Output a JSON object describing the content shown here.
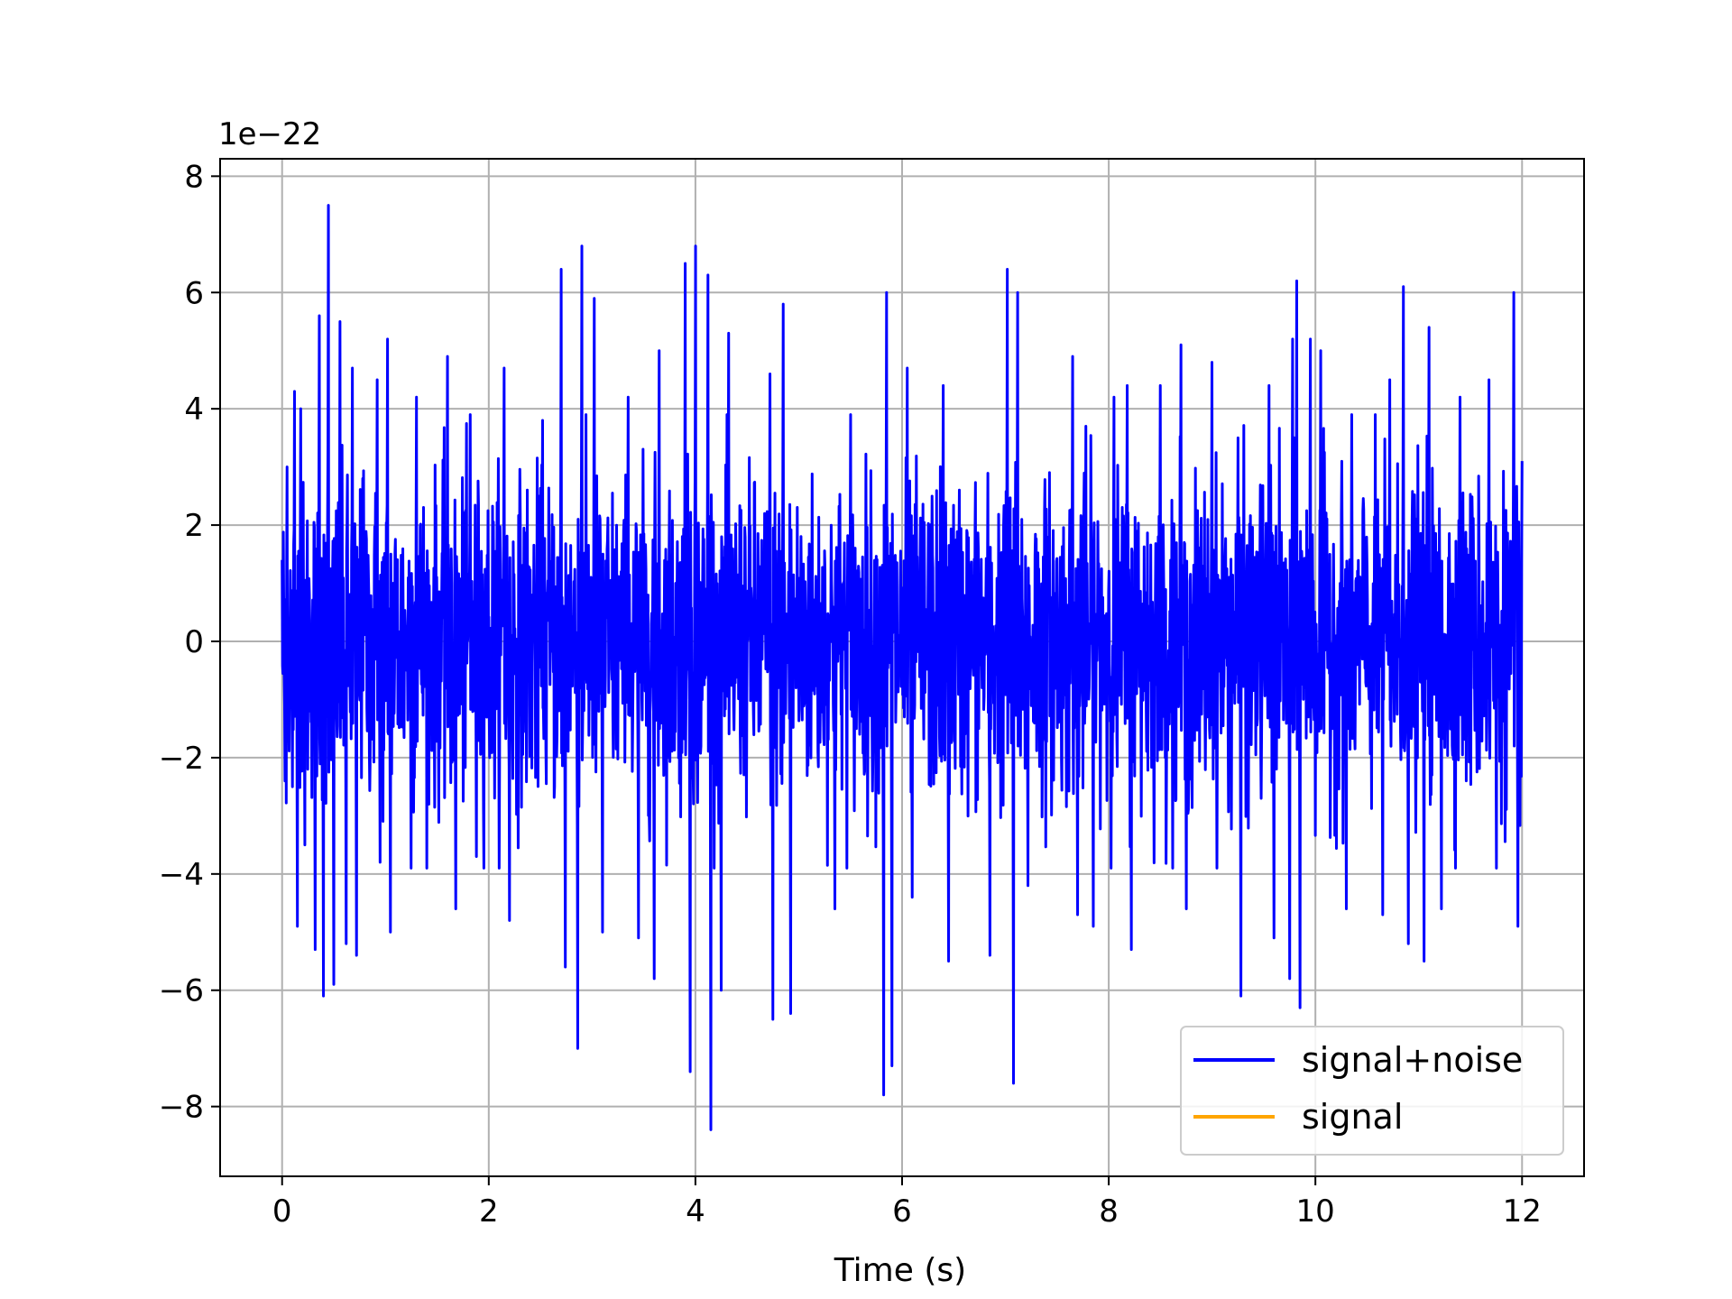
{
  "chart_data": {
    "type": "line",
    "xlabel": "Time (s)",
    "ylabel": "",
    "y_offset_text": "1e−22",
    "xlim": [
      -0.6,
      12.6
    ],
    "ylim": [
      -9.2,
      8.3
    ],
    "x_ticks": [
      0,
      2,
      4,
      6,
      8,
      10,
      12
    ],
    "x_tick_labels": [
      "0",
      "2",
      "4",
      "6",
      "8",
      "10",
      "12"
    ],
    "y_ticks": [
      -8,
      -6,
      -4,
      -2,
      0,
      2,
      4,
      6,
      8
    ],
    "y_tick_labels": [
      "−8",
      "−6",
      "−4",
      "−2",
      "0",
      "2",
      "4",
      "6",
      "8"
    ],
    "grid": true,
    "legend_position": "lower-right",
    "series": [
      {
        "name": "signal+noise",
        "color": "#0000ff",
        "x_range": [
          0,
          12
        ],
        "envelope_peaks": [
          {
            "x": 0.0,
            "y": 1.4
          },
          {
            "x": 0.03,
            "y": -2.4
          },
          {
            "x": 0.05,
            "y": 3.0
          },
          {
            "x": 0.1,
            "y": -2.5
          },
          {
            "x": 0.12,
            "y": 4.3
          },
          {
            "x": 0.15,
            "y": -4.9
          },
          {
            "x": 0.18,
            "y": 4.0
          },
          {
            "x": 0.22,
            "y": -3.5
          },
          {
            "x": 0.32,
            "y": -5.3
          },
          {
            "x": 0.36,
            "y": 5.6
          },
          {
            "x": 0.4,
            "y": -6.1
          },
          {
            "x": 0.45,
            "y": 7.5
          },
          {
            "x": 0.5,
            "y": -5.9
          },
          {
            "x": 0.56,
            "y": 5.5
          },
          {
            "x": 0.62,
            "y": -5.2
          },
          {
            "x": 0.68,
            "y": 4.7
          },
          {
            "x": 0.72,
            "y": -5.4
          },
          {
            "x": 0.78,
            "y": 2.8
          },
          {
            "x": 0.92,
            "y": 4.5
          },
          {
            "x": 0.95,
            "y": -3.8
          },
          {
            "x": 1.02,
            "y": 5.2
          },
          {
            "x": 1.05,
            "y": -5.0
          },
          {
            "x": 1.25,
            "y": -3.9
          },
          {
            "x": 1.3,
            "y": 4.2
          },
          {
            "x": 1.6,
            "y": 4.9
          },
          {
            "x": 1.68,
            "y": -4.6
          },
          {
            "x": 1.82,
            "y": 3.9
          },
          {
            "x": 1.88,
            "y": -3.7
          },
          {
            "x": 2.15,
            "y": 4.7
          },
          {
            "x": 2.2,
            "y": -4.8
          },
          {
            "x": 2.52,
            "y": 3.8
          },
          {
            "x": 2.7,
            "y": 6.4
          },
          {
            "x": 2.74,
            "y": -5.6
          },
          {
            "x": 2.9,
            "y": 6.8
          },
          {
            "x": 2.86,
            "y": -7.0
          },
          {
            "x": 3.02,
            "y": 5.9
          },
          {
            "x": 3.1,
            "y": -5.0
          },
          {
            "x": 3.35,
            "y": 4.2
          },
          {
            "x": 3.45,
            "y": -5.1
          },
          {
            "x": 3.6,
            "y": -5.8
          },
          {
            "x": 3.65,
            "y": 5.0
          },
          {
            "x": 3.9,
            "y": 6.5
          },
          {
            "x": 3.95,
            "y": -7.4
          },
          {
            "x": 4.0,
            "y": 6.8
          },
          {
            "x": 4.12,
            "y": 6.3
          },
          {
            "x": 4.15,
            "y": -8.4
          },
          {
            "x": 4.25,
            "y": -6.0
          },
          {
            "x": 4.32,
            "y": 5.3
          },
          {
            "x": 4.72,
            "y": 4.6
          },
          {
            "x": 4.75,
            "y": -6.5
          },
          {
            "x": 4.85,
            "y": 5.8
          },
          {
            "x": 4.92,
            "y": -6.4
          },
          {
            "x": 5.5,
            "y": 3.9
          },
          {
            "x": 5.35,
            "y": -4.6
          },
          {
            "x": 5.82,
            "y": -7.8
          },
          {
            "x": 5.85,
            "y": 6.0
          },
          {
            "x": 5.9,
            "y": -7.3
          },
          {
            "x": 6.05,
            "y": 4.7
          },
          {
            "x": 6.1,
            "y": -4.4
          },
          {
            "x": 6.4,
            "y": 4.4
          },
          {
            "x": 6.45,
            "y": -5.5
          },
          {
            "x": 6.85,
            "y": -5.4
          },
          {
            "x": 7.02,
            "y": 6.4
          },
          {
            "x": 7.08,
            "y": -7.6
          },
          {
            "x": 7.12,
            "y": 6.0
          },
          {
            "x": 7.22,
            "y": -4.2
          },
          {
            "x": 7.65,
            "y": 4.9
          },
          {
            "x": 7.7,
            "y": -4.7
          },
          {
            "x": 7.78,
            "y": 3.7
          },
          {
            "x": 7.85,
            "y": -4.9
          },
          {
            "x": 8.05,
            "y": 4.2
          },
          {
            "x": 8.18,
            "y": 4.4
          },
          {
            "x": 8.22,
            "y": -5.3
          },
          {
            "x": 8.5,
            "y": 4.4
          },
          {
            "x": 8.7,
            "y": 5.1
          },
          {
            "x": 8.75,
            "y": -4.6
          },
          {
            "x": 9.0,
            "y": 4.8
          },
          {
            "x": 9.25,
            "y": 3.5
          },
          {
            "x": 9.28,
            "y": -6.1
          },
          {
            "x": 9.55,
            "y": 4.4
          },
          {
            "x": 9.6,
            "y": -5.1
          },
          {
            "x": 9.75,
            "y": -5.8
          },
          {
            "x": 9.78,
            "y": 5.2
          },
          {
            "x": 9.82,
            "y": 6.2
          },
          {
            "x": 9.85,
            "y": -6.3
          },
          {
            "x": 9.95,
            "y": 5.2
          },
          {
            "x": 10.05,
            "y": 5.0
          },
          {
            "x": 10.3,
            "y": -4.6
          },
          {
            "x": 10.65,
            "y": -4.7
          },
          {
            "x": 10.72,
            "y": 4.5
          },
          {
            "x": 10.85,
            "y": 6.1
          },
          {
            "x": 10.9,
            "y": -5.2
          },
          {
            "x": 11.05,
            "y": -5.5
          },
          {
            "x": 11.1,
            "y": 5.4
          },
          {
            "x": 11.22,
            "y": -4.6
          },
          {
            "x": 11.4,
            "y": 4.2
          },
          {
            "x": 11.68,
            "y": 4.5
          },
          {
            "x": 11.75,
            "y": -3.9
          },
          {
            "x": 11.92,
            "y": 6.0
          },
          {
            "x": 11.96,
            "y": -4.9
          },
          {
            "x": 12.0,
            "y": 3.1
          }
        ]
      },
      {
        "name": "signal",
        "color": "#ffa500"
      }
    ]
  }
}
